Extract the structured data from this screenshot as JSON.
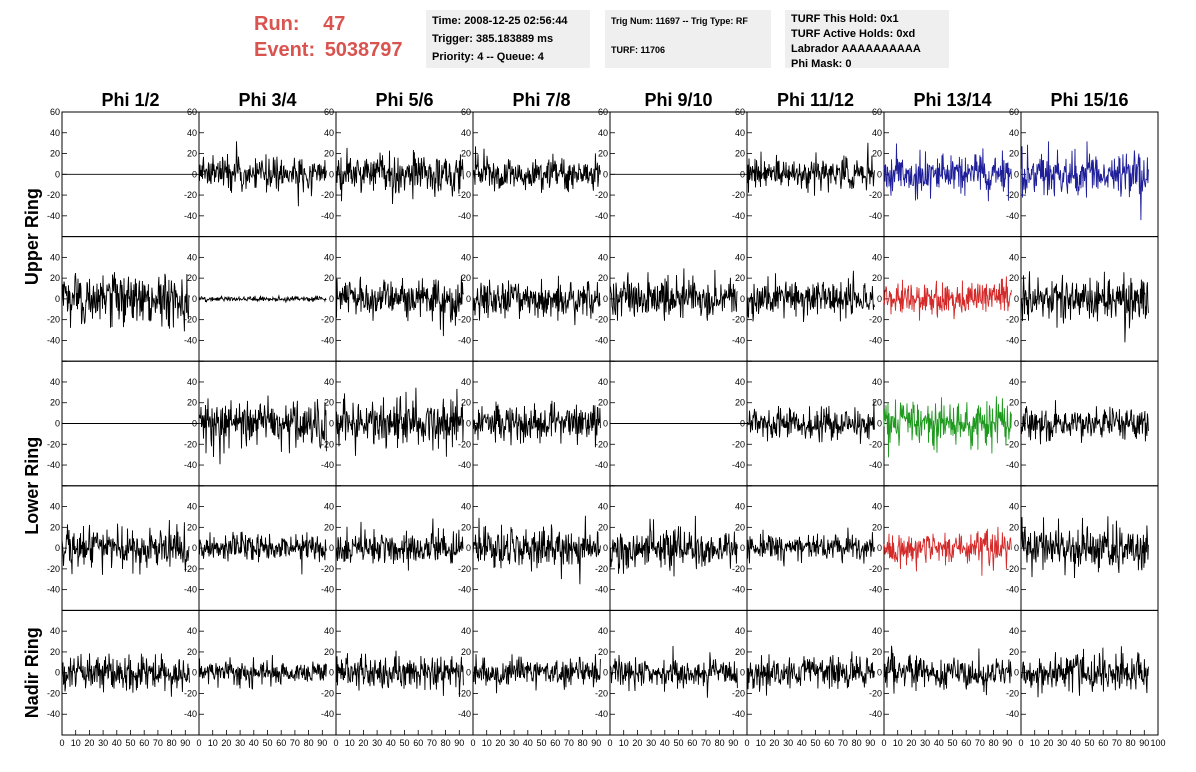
{
  "header": {
    "run_label": "Run:",
    "run_value": "47",
    "event_label": "Event:",
    "event_value": "5038797",
    "time": "Time: 2008-12-25 02:56:44",
    "trigger": "Trigger: 385.183889 ms",
    "priority": "Priority: 4 -- Queue: 4",
    "trig_num": "Trig Num: 11697 -- Trig Type: RF",
    "turf": "TURF: 11706",
    "turf_this_hold": "TURF This Hold: 0x1",
    "turf_active_holds": "TURF Active Holds: 0xd",
    "labrador": "Labrador AAAAAAAAAA",
    "phi_mask": "Phi Mask: 0"
  },
  "columns": [
    "Phi 1/2",
    "Phi 3/4",
    "Phi 5/6",
    "Phi 7/8",
    "Phi 9/10",
    "Phi 11/12",
    "Phi 13/14",
    "Phi 15/16"
  ],
  "rings": [
    {
      "label": "Upper Ring",
      "rows": [
        0,
        1
      ]
    },
    {
      "label": "Lower Ring",
      "rows": [
        2,
        3
      ]
    },
    {
      "label": "Nadir Ring",
      "rows": [
        4
      ]
    }
  ],
  "colors": {
    "default": "#000000",
    "blue": "#1f1f9a",
    "red": "#d42a2a",
    "green": "#1f9a1f"
  },
  "chart_data": {
    "type": "line",
    "xlim": [
      0,
      100
    ],
    "ylim": [
      -60,
      60
    ],
    "x_ticks": [
      0,
      10,
      20,
      30,
      40,
      50,
      60,
      70,
      80,
      90,
      100
    ],
    "y_ticks": [
      -60,
      -40,
      -20,
      0,
      20,
      40,
      60
    ],
    "x_tick_labels": [
      "0",
      "10",
      "20",
      "30",
      "40",
      "50",
      "60",
      "70",
      "80",
      "90",
      "100"
    ],
    "y_tick_labels": [
      "-60",
      "-40",
      "-20",
      "0",
      "20",
      "40",
      "60"
    ],
    "n_samples": 256,
    "panels": [
      {
        "row": 0,
        "col": 0,
        "amp": 0,
        "color": "default"
      },
      {
        "row": 0,
        "col": 1,
        "amp": 15,
        "color": "default"
      },
      {
        "row": 0,
        "col": 2,
        "amp": 18,
        "color": "default"
      },
      {
        "row": 0,
        "col": 3,
        "amp": 14,
        "color": "default"
      },
      {
        "row": 0,
        "col": 4,
        "amp": 0,
        "color": "default"
      },
      {
        "row": 0,
        "col": 5,
        "amp": 14,
        "color": "default"
      },
      {
        "row": 0,
        "col": 6,
        "amp": 17,
        "color": "blue"
      },
      {
        "row": 0,
        "col": 7,
        "amp": 20,
        "color": "blue"
      },
      {
        "row": 1,
        "col": 0,
        "amp": 22,
        "color": "default"
      },
      {
        "row": 1,
        "col": 1,
        "amp": 2,
        "color": "default"
      },
      {
        "row": 1,
        "col": 2,
        "amp": 18,
        "color": "default"
      },
      {
        "row": 1,
        "col": 3,
        "amp": 17,
        "color": "default"
      },
      {
        "row": 1,
        "col": 4,
        "amp": 18,
        "color": "default"
      },
      {
        "row": 1,
        "col": 5,
        "amp": 16,
        "color": "default"
      },
      {
        "row": 1,
        "col": 6,
        "amp": 15,
        "color": "red"
      },
      {
        "row": 1,
        "col": 7,
        "amp": 20,
        "color": "default"
      },
      {
        "row": 2,
        "col": 0,
        "amp": 0,
        "color": "default"
      },
      {
        "row": 2,
        "col": 1,
        "amp": 20,
        "color": "default"
      },
      {
        "row": 2,
        "col": 2,
        "amp": 22,
        "color": "default"
      },
      {
        "row": 2,
        "col": 3,
        "amp": 16,
        "color": "default"
      },
      {
        "row": 2,
        "col": 4,
        "amp": 0,
        "color": "default"
      },
      {
        "row": 2,
        "col": 5,
        "amp": 14,
        "color": "default"
      },
      {
        "row": 2,
        "col": 6,
        "amp": 20,
        "color": "green"
      },
      {
        "row": 2,
        "col": 7,
        "amp": 14,
        "color": "default"
      },
      {
        "row": 3,
        "col": 0,
        "amp": 18,
        "color": "default"
      },
      {
        "row": 3,
        "col": 1,
        "amp": 13,
        "color": "default"
      },
      {
        "row": 3,
        "col": 2,
        "amp": 15,
        "color": "default"
      },
      {
        "row": 3,
        "col": 3,
        "amp": 18,
        "color": "default"
      },
      {
        "row": 3,
        "col": 4,
        "amp": 18,
        "color": "default"
      },
      {
        "row": 3,
        "col": 5,
        "amp": 12,
        "color": "default"
      },
      {
        "row": 3,
        "col": 6,
        "amp": 14,
        "color": "red"
      },
      {
        "row": 3,
        "col": 7,
        "amp": 20,
        "color": "default"
      },
      {
        "row": 4,
        "col": 0,
        "amp": 15,
        "color": "default"
      },
      {
        "row": 4,
        "col": 1,
        "amp": 11,
        "color": "default"
      },
      {
        "row": 4,
        "col": 2,
        "amp": 14,
        "color": "default"
      },
      {
        "row": 4,
        "col": 3,
        "amp": 13,
        "color": "default"
      },
      {
        "row": 4,
        "col": 4,
        "amp": 12,
        "color": "default"
      },
      {
        "row": 4,
        "col": 5,
        "amp": 14,
        "color": "default"
      },
      {
        "row": 4,
        "col": 6,
        "amp": 14,
        "color": "default"
      },
      {
        "row": 4,
        "col": 7,
        "amp": 16,
        "color": "default"
      }
    ]
  }
}
